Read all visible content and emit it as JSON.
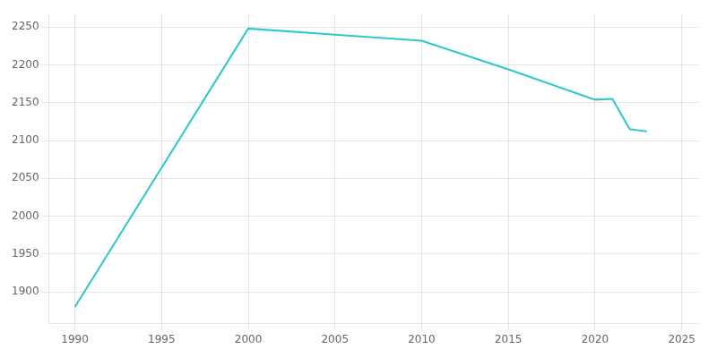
{
  "chart_data": {
    "type": "line",
    "x": [
      1990,
      2000,
      2005,
      2010,
      2015,
      2020,
      2021,
      2022,
      2023
    ],
    "values": [
      1880,
      2248,
      2240,
      2232,
      2194,
      2154,
      2155,
      2115,
      2112
    ],
    "color": "#2ec8c8",
    "xlim": [
      1988.5,
      2026
    ],
    "ylim": [
      1858,
      2268
    ],
    "xticks": [
      1990,
      1995,
      2000,
      2005,
      2010,
      2015,
      2020,
      2025
    ],
    "yticks": [
      1900,
      1950,
      2000,
      2050,
      2100,
      2150,
      2200,
      2250
    ],
    "grid": true
  }
}
